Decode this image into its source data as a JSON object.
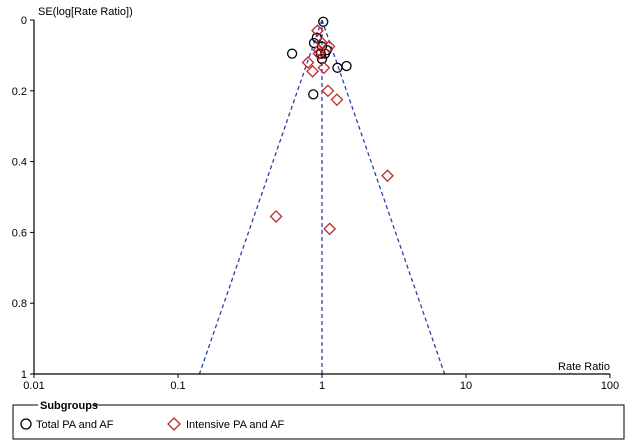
{
  "chart_data": {
    "type": "scatter",
    "ylabel": "SE(log[Rate Ratio])",
    "xlabel": "Rate Ratio",
    "x_scale": "log",
    "xlim": [
      0.01,
      100
    ],
    "ylim": [
      0,
      1
    ],
    "y_inverted": true,
    "x_ticks": [
      "0.01",
      "0.1",
      "1",
      "10",
      "100"
    ],
    "y_ticks": [
      "0",
      "0.2",
      "0.4",
      "0.6",
      "0.8",
      "1"
    ],
    "center_line_x": 1.0,
    "legend": {
      "title": "Subgroups",
      "placement": "bottom"
    },
    "series": [
      {
        "name": "Total PA and AF",
        "marker": "circle",
        "color": "#000000",
        "points": [
          {
            "x": 1.02,
            "y": 0.005
          },
          {
            "x": 0.92,
            "y": 0.05
          },
          {
            "x": 0.88,
            "y": 0.065
          },
          {
            "x": 1.0,
            "y": 0.075
          },
          {
            "x": 1.08,
            "y": 0.085
          },
          {
            "x": 0.98,
            "y": 0.095
          },
          {
            "x": 1.05,
            "y": 0.095
          },
          {
            "x": 1.0,
            "y": 0.11
          },
          {
            "x": 0.62,
            "y": 0.095
          },
          {
            "x": 1.28,
            "y": 0.135
          },
          {
            "x": 1.48,
            "y": 0.13
          },
          {
            "x": 0.87,
            "y": 0.21
          }
        ]
      },
      {
        "name": "Intensive PA and AF",
        "marker": "diamond",
        "color": "#c0282c",
        "points": [
          {
            "x": 0.93,
            "y": 0.03
          },
          {
            "x": 1.0,
            "y": 0.065
          },
          {
            "x": 1.12,
            "y": 0.075
          },
          {
            "x": 0.95,
            "y": 0.085
          },
          {
            "x": 0.95,
            "y": 0.095
          },
          {
            "x": 0.8,
            "y": 0.12
          },
          {
            "x": 0.86,
            "y": 0.145
          },
          {
            "x": 1.03,
            "y": 0.135
          },
          {
            "x": 1.1,
            "y": 0.2
          },
          {
            "x": 1.27,
            "y": 0.225
          },
          {
            "x": 2.85,
            "y": 0.44
          },
          {
            "x": 0.48,
            "y": 0.555
          },
          {
            "x": 1.13,
            "y": 0.59
          }
        ]
      }
    ]
  }
}
